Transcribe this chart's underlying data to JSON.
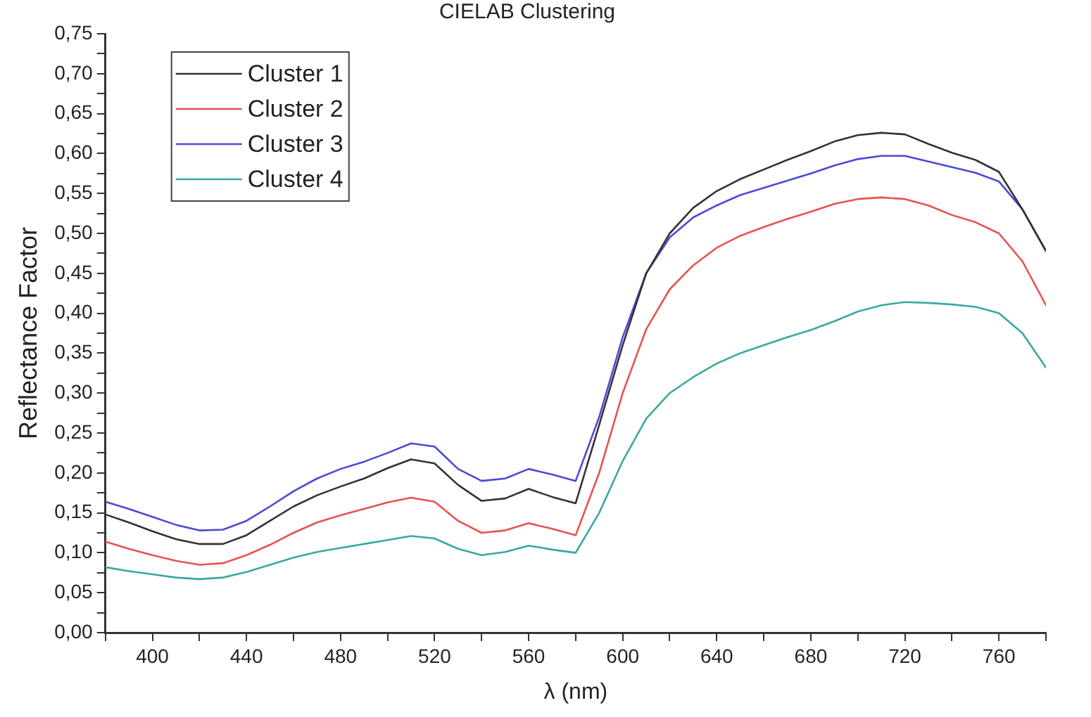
{
  "chart_data": {
    "type": "line",
    "title": "CIELAB Clustering",
    "xlabel": "λ (nm)",
    "ylabel": "Reflectance Factor",
    "x": [
      380,
      390,
      400,
      410,
      420,
      430,
      440,
      450,
      460,
      470,
      480,
      490,
      500,
      510,
      520,
      530,
      540,
      550,
      560,
      570,
      580,
      590,
      600,
      610,
      620,
      630,
      640,
      650,
      660,
      670,
      680,
      690,
      700,
      710,
      720,
      730,
      740,
      750,
      760,
      770,
      780
    ],
    "series": [
      {
        "name": "Cluster 1",
        "color": "#333333",
        "values": [
          0.148,
          0.138,
          0.127,
          0.117,
          0.111,
          0.111,
          0.122,
          0.14,
          0.158,
          0.172,
          0.183,
          0.193,
          0.206,
          0.217,
          0.212,
          0.185,
          0.165,
          0.168,
          0.18,
          0.17,
          0.162,
          0.26,
          0.36,
          0.45,
          0.5,
          0.532,
          0.553,
          0.568,
          0.58,
          0.592,
          0.603,
          0.615,
          0.623,
          0.626,
          0.624,
          0.612,
          0.601,
          0.592,
          0.577,
          0.53,
          0.478
        ]
      },
      {
        "name": "Cluster 2",
        "color": "#e8524f",
        "values": [
          0.114,
          0.105,
          0.097,
          0.09,
          0.085,
          0.087,
          0.097,
          0.11,
          0.125,
          0.138,
          0.147,
          0.155,
          0.163,
          0.169,
          0.164,
          0.14,
          0.125,
          0.128,
          0.137,
          0.13,
          0.122,
          0.2,
          0.3,
          0.38,
          0.43,
          0.46,
          0.482,
          0.497,
          0.508,
          0.518,
          0.527,
          0.537,
          0.543,
          0.545,
          0.543,
          0.535,
          0.523,
          0.514,
          0.5,
          0.465,
          0.41
        ]
      },
      {
        "name": "Cluster 3",
        "color": "#4a4ad8",
        "values": [
          0.164,
          0.155,
          0.145,
          0.135,
          0.128,
          0.129,
          0.14,
          0.158,
          0.177,
          0.193,
          0.205,
          0.214,
          0.225,
          0.237,
          0.233,
          0.205,
          0.19,
          0.193,
          0.205,
          0.198,
          0.19,
          0.27,
          0.37,
          0.45,
          0.495,
          0.52,
          0.535,
          0.548,
          0.557,
          0.566,
          0.575,
          0.585,
          0.593,
          0.597,
          0.597,
          0.59,
          0.583,
          0.576,
          0.565,
          0.53,
          0.478
        ]
      },
      {
        "name": "Cluster 4",
        "color": "#3aa8a0",
        "values": [
          0.082,
          0.077,
          0.073,
          0.069,
          0.067,
          0.069,
          0.076,
          0.085,
          0.094,
          0.101,
          0.106,
          0.111,
          0.116,
          0.121,
          0.118,
          0.105,
          0.097,
          0.101,
          0.109,
          0.104,
          0.1,
          0.15,
          0.215,
          0.268,
          0.3,
          0.32,
          0.337,
          0.35,
          0.36,
          0.37,
          0.379,
          0.39,
          0.402,
          0.41,
          0.414,
          0.413,
          0.411,
          0.408,
          0.4,
          0.375,
          0.332
        ]
      }
    ],
    "xlim": [
      380,
      780
    ],
    "xticks": [
      {
        "value": 380,
        "label": null
      },
      400,
      {
        "value": 420,
        "label": null
      },
      440,
      {
        "value": 460,
        "label": null
      },
      480,
      {
        "value": 500,
        "label": null
      },
      520,
      {
        "value": 540,
        "label": null
      },
      560,
      {
        "value": 580,
        "label": null
      },
      600,
      {
        "value": 620,
        "label": null
      },
      640,
      {
        "value": 660,
        "label": null
      },
      680,
      {
        "value": 700,
        "label": null
      },
      720,
      {
        "value": 740,
        "label": null
      },
      760,
      {
        "value": 780,
        "label": null
      }
    ],
    "ylim": [
      0,
      0.75
    ],
    "yticks": [
      {
        "value": 0,
        "label": "0,00"
      },
      {
        "value": 0.025,
        "label": null
      },
      {
        "value": 0.05,
        "label": "0,05"
      },
      {
        "value": 0.075,
        "label": null
      },
      {
        "value": 0.1,
        "label": "0,10"
      },
      {
        "value": 0.125,
        "label": null
      },
      {
        "value": 0.15,
        "label": "0,15"
      },
      {
        "value": 0.175,
        "label": null
      },
      {
        "value": 0.2,
        "label": "0,20"
      },
      {
        "value": 0.225,
        "label": null
      },
      {
        "value": 0.25,
        "label": "0,25"
      },
      {
        "value": 0.275,
        "label": null
      },
      {
        "value": 0.3,
        "label": "0,30"
      },
      {
        "value": 0.325,
        "label": null
      },
      {
        "value": 0.35,
        "label": "0,35"
      },
      {
        "value": 0.375,
        "label": null
      },
      {
        "value": 0.4,
        "label": "0,40"
      },
      {
        "value": 0.425,
        "label": null
      },
      {
        "value": 0.45,
        "label": "0,45"
      },
      {
        "value": 0.475,
        "label": null
      },
      {
        "value": 0.5,
        "label": "0,50"
      },
      {
        "value": 0.525,
        "label": null
      },
      {
        "value": 0.55,
        "label": "0,55"
      },
      {
        "value": 0.575,
        "label": null
      },
      {
        "value": 0.6,
        "label": "0,60"
      },
      {
        "value": 0.625,
        "label": null
      },
      {
        "value": 0.65,
        "label": "0,65"
      },
      {
        "value": 0.675,
        "label": null
      },
      {
        "value": 0.7,
        "label": "0,70"
      },
      {
        "value": 0.725,
        "label": null
      },
      {
        "value": 0.75,
        "label": "0,75"
      }
    ],
    "grid": false,
    "legend": "top left",
    "marker": "none",
    "line_style": "solid"
  }
}
